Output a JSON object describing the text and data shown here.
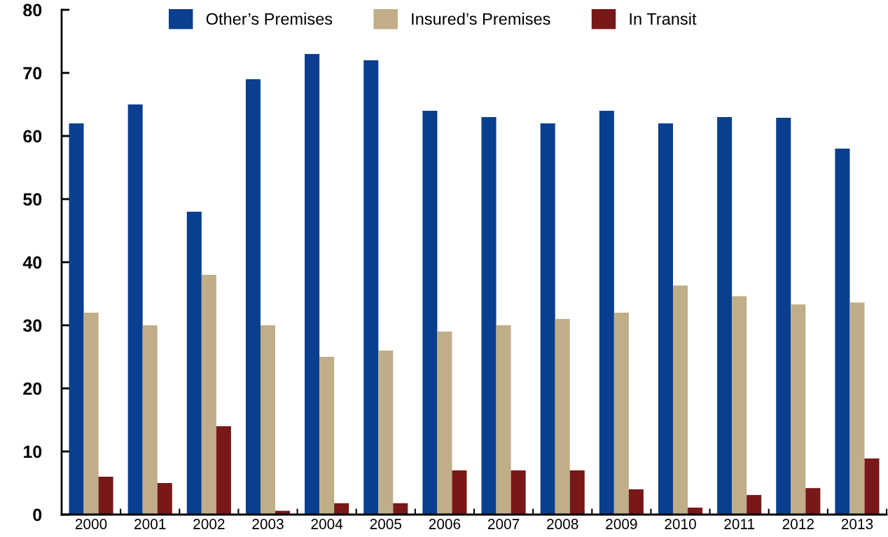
{
  "chart_data": {
    "type": "bar",
    "categories": [
      "2000",
      "2001",
      "2002",
      "2003",
      "2004",
      "2005",
      "2006",
      "2007",
      "2008",
      "2009",
      "2010",
      "2011",
      "2012",
      "2013"
    ],
    "series": [
      {
        "name": "Other’s Premises",
        "color": "#0a3f8f",
        "values": [
          62,
          65,
          48,
          69,
          73,
          72,
          64,
          63,
          62,
          64,
          62,
          63,
          62.9,
          58
        ]
      },
      {
        "name": "Insured’s Premises",
        "color": "#bfae87",
        "values": [
          32,
          30,
          38,
          30,
          25,
          26,
          29,
          30,
          31,
          32,
          36.3,
          34.6,
          33.3,
          33.6
        ]
      },
      {
        "name": "In Transit",
        "color": "#781818",
        "values": [
          6,
          5,
          14,
          0.6,
          1.8,
          1.8,
          7,
          7,
          7,
          4,
          1.1,
          3.1,
          4.2,
          8.9
        ]
      }
    ],
    "ylim": [
      0,
      80
    ],
    "yticks": [
      0,
      10,
      20,
      30,
      40,
      50,
      60,
      70,
      80
    ],
    "grid": false,
    "legend": "top"
  }
}
